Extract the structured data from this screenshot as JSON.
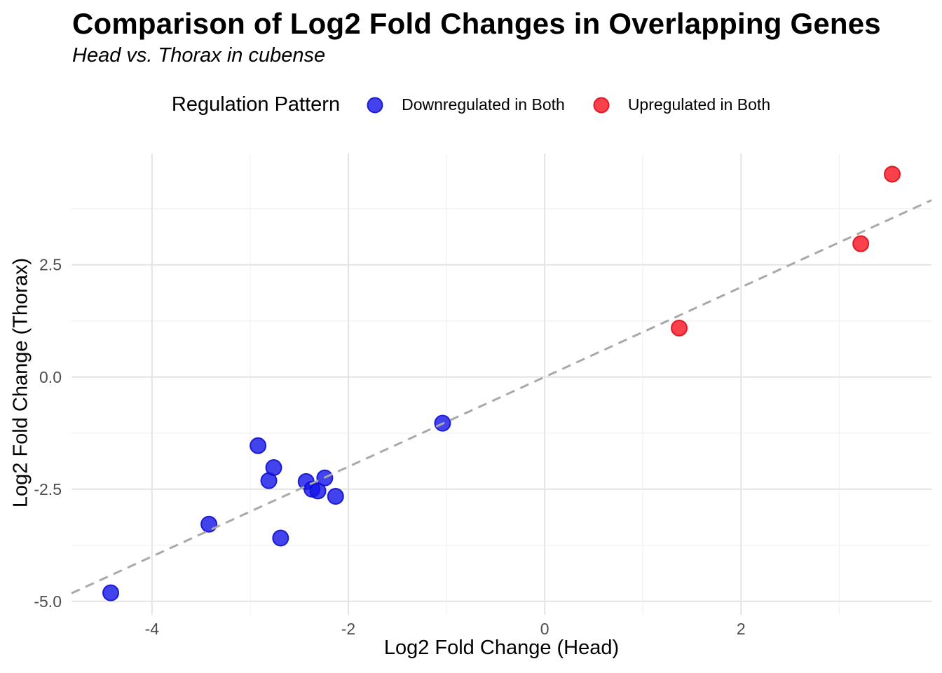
{
  "header": {
    "title": "Comparison of Log2 Fold Changes in Overlapping Genes",
    "subtitle": "Head vs. Thorax in cubense"
  },
  "legend": {
    "title": "Regulation Pattern",
    "items": [
      {
        "label": "Downregulated in Both",
        "color": "#3a3aee"
      },
      {
        "label": "Upregulated in Both",
        "color": "#f83a44"
      }
    ]
  },
  "chart_data": {
    "type": "scatter",
    "title": "Comparison of Log2 Fold Changes in Overlapping Genes",
    "subtitle": "Head vs. Thorax in cubense",
    "xlabel": "Log2 Fold Change (Head)",
    "ylabel": "Log2 Fold Change (Thorax)",
    "xlim": [
      -4.82,
      3.94
    ],
    "ylim": [
      -5.3,
      4.98
    ],
    "x_major_ticks": [
      -4,
      -2,
      0,
      2
    ],
    "x_tick_labels": [
      "-4",
      "-2",
      "0",
      "2"
    ],
    "x_minor_ticks": [
      -3,
      -1,
      1,
      3
    ],
    "y_major_ticks": [
      2.5,
      0,
      -2.5,
      -5
    ],
    "y_tick_labels": [
      "2.5",
      "0.0",
      "-2.5",
      "-5.0"
    ],
    "y_minor_ticks": [
      3.75,
      1.25,
      -1.25,
      -3.75
    ],
    "grid": true,
    "legend_position": "top",
    "background": "#ffffff",
    "grid_major_color": "#e4e4e4",
    "grid_minor_color": "#f1f1f1",
    "reference_line": {
      "slope": 1,
      "intercept": 0,
      "style": "dashed",
      "color": "#a9a9a9"
    },
    "series": [
      {
        "name": "Downregulated in Both",
        "color": "#3a3aee",
        "fill": "rgba(20,20,232,0.8)",
        "stroke": "rgba(16,16,205,0.9)",
        "points": [
          [
            -4.42,
            -4.81
          ],
          [
            -3.42,
            -3.28
          ],
          [
            -2.92,
            -1.53
          ],
          [
            -2.81,
            -2.31
          ],
          [
            -2.76,
            -2.02
          ],
          [
            -2.69,
            -3.59
          ],
          [
            -2.43,
            -2.33
          ],
          [
            -2.37,
            -2.5
          ],
          [
            -2.31,
            -2.54
          ],
          [
            -2.24,
            -2.25
          ],
          [
            -2.13,
            -2.66
          ],
          [
            -1.04,
            -1.03
          ]
        ]
      },
      {
        "name": "Upregulated in Both",
        "color": "#f83a44",
        "fill": "rgba(249,18,30,0.8)",
        "stroke": "rgba(222,12,26,0.9)",
        "points": [
          [
            1.37,
            1.09
          ],
          [
            3.22,
            2.97
          ],
          [
            3.54,
            4.52
          ]
        ]
      }
    ]
  }
}
